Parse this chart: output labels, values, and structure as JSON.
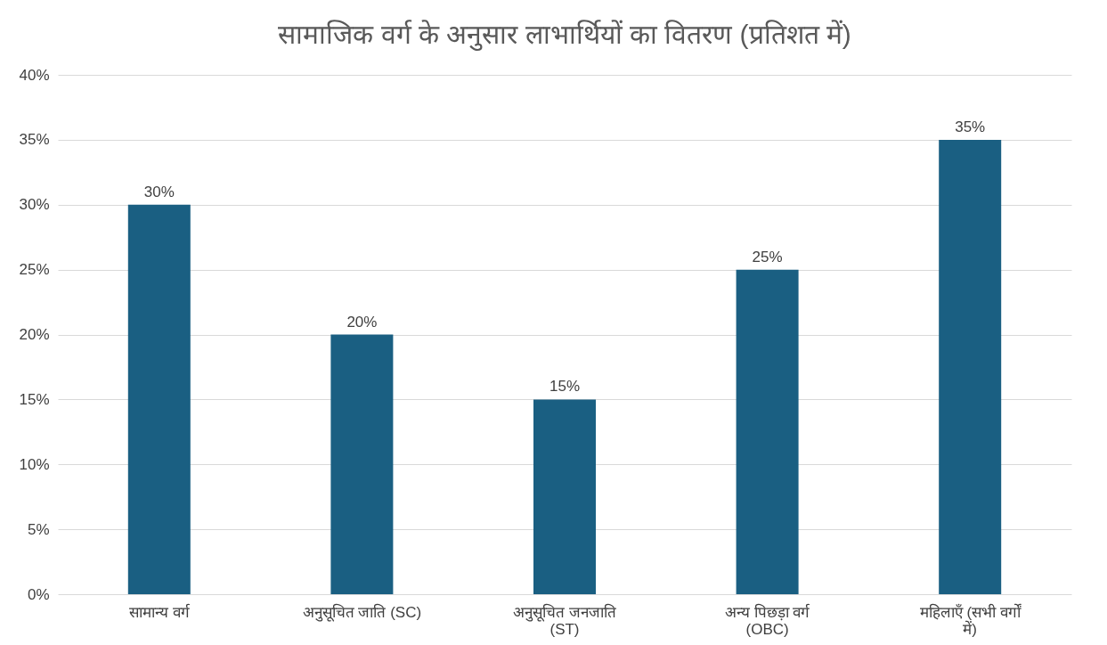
{
  "chart_data": {
    "type": "bar",
    "title": "सामाजिक वर्ग के अनुसार लाभार्थियों का वितरण (प्रतिशत में)",
    "categories": [
      "सामान्य वर्ग",
      "अनुसूचित जाति (SC)",
      "अनुसूचित जनजाति (ST)",
      "अन्य पिछड़ा वर्ग (OBC)",
      "महिलाएँ (सभी वर्गों में)"
    ],
    "values": [
      30,
      20,
      15,
      25,
      35
    ],
    "value_labels": [
      "30%",
      "20%",
      "15%",
      "25%",
      "35%"
    ],
    "color": "#1a5f82",
    "ylim": [
      0,
      40
    ],
    "yticks": [
      {
        "value": 0,
        "label": "0%"
      },
      {
        "value": 5,
        "label": "5%"
      },
      {
        "value": 10,
        "label": "10%"
      },
      {
        "value": 15,
        "label": "15%"
      },
      {
        "value": 20,
        "label": "20%"
      },
      {
        "value": 25,
        "label": "25%"
      },
      {
        "value": 30,
        "label": "30%"
      },
      {
        "value": 35,
        "label": "35%"
      },
      {
        "value": 40,
        "label": "40%"
      }
    ],
    "grid": "y"
  }
}
